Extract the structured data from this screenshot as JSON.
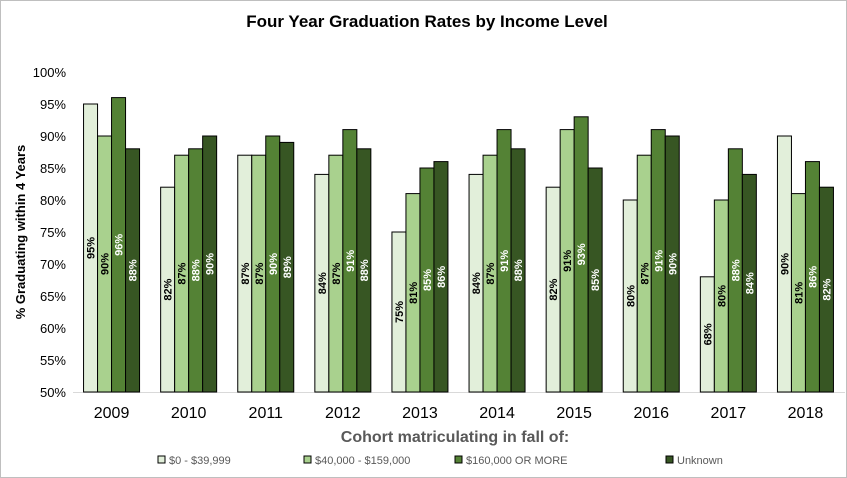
{
  "chart_data": {
    "type": "bar",
    "title": "Four Year Graduation  Rates by Income Level",
    "xlabel": "Cohort matriculating in fall of:",
    "ylabel": "% Graduating within 4 Years",
    "ylim": [
      50,
      100
    ],
    "yticks": [
      "50%",
      "55%",
      "60%",
      "65%",
      "70%",
      "75%",
      "80%",
      "85%",
      "90%",
      "95%",
      "100%"
    ],
    "grid": false,
    "legend_position": "bottom",
    "categories": [
      "2009",
      "2010",
      "2011",
      "2012",
      "2013",
      "2014",
      "2015",
      "2016",
      "2017",
      "2018"
    ],
    "series": [
      {
        "name": "$0 - $39,999",
        "color": "#e2efda",
        "label_color": "#000000",
        "values": [
          95,
          82,
          87,
          84,
          75,
          84,
          82,
          80,
          68,
          90
        ]
      },
      {
        "name": "$40,000 - $159,000",
        "color": "#a9d18e",
        "label_color": "#000000",
        "values": [
          90,
          87,
          87,
          87,
          81,
          87,
          91,
          87,
          80,
          81
        ]
      },
      {
        "name": "$160,000 OR MORE",
        "color": "#548235",
        "label_color": "#ffffff",
        "values": [
          96,
          88,
          90,
          91,
          85,
          91,
          93,
          91,
          88,
          86
        ]
      },
      {
        "name": "Unknown",
        "color": "#375623",
        "label_color": "#ffffff",
        "values": [
          88,
          90,
          89,
          88,
          86,
          88,
          85,
          90,
          84,
          82
        ]
      }
    ]
  }
}
